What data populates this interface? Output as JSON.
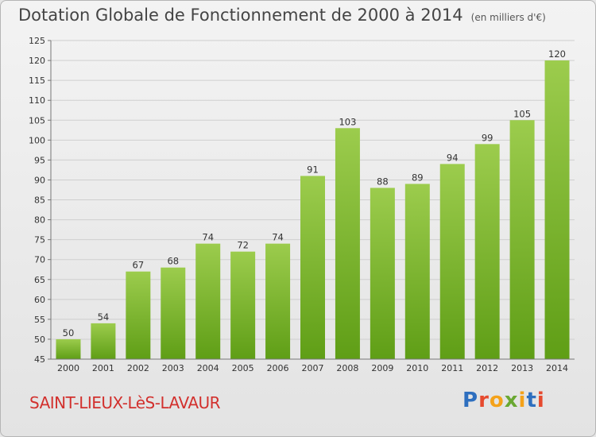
{
  "header": {
    "title": "Dotation Globale de Fonctionnement de 2000 à 2014",
    "unit_note": "(en milliers d'€)"
  },
  "footer": {
    "commune": "SAINT-LIEUX-LèS-LAVAUR",
    "logo_text": "Proxiti"
  },
  "colors": {
    "bar_top": "#9ccc4d",
    "bar_bottom": "#5f9e16",
    "commune_text": "#d2312e",
    "logo_letters": [
      "#2e6fbf",
      "#e64a2e",
      "#f4a21a",
      "#6aa832",
      "#f4a21a",
      "#2e6fbf",
      "#e64a2e"
    ]
  },
  "chart_data": {
    "type": "bar",
    "categories": [
      "2000",
      "2001",
      "2002",
      "2003",
      "2004",
      "2005",
      "2006",
      "2007",
      "2008",
      "2009",
      "2010",
      "2011",
      "2012",
      "2013",
      "2014"
    ],
    "values": [
      50,
      54,
      67,
      68,
      74,
      72,
      74,
      91,
      103,
      88,
      89,
      94,
      99,
      105,
      120
    ],
    "data_labels": [
      "50",
      "54",
      "67",
      "68",
      "74",
      "72",
      "74",
      "91",
      "103",
      "88",
      "89",
      "94",
      "99",
      "105",
      "120"
    ],
    "title": "Dotation Globale de Fonctionnement de 2000 à 2014",
    "ylim": [
      45,
      125
    ],
    "yticks": [
      45,
      50,
      55,
      60,
      65,
      70,
      75,
      80,
      85,
      90,
      95,
      100,
      105,
      110,
      115,
      120,
      125
    ],
    "grid": true
  }
}
